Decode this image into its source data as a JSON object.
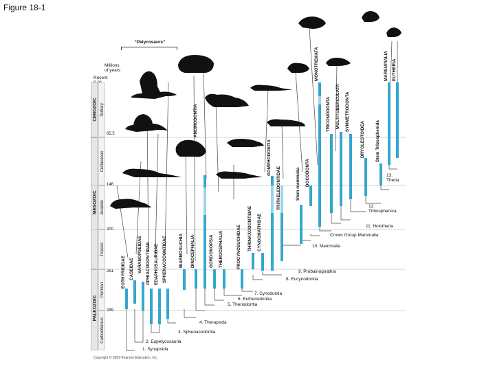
{
  "figure_title": "Figure 18-1",
  "copyright": "Copyright © 2009 Pearson Education, Inc.",
  "pelycosaurs_label": "“Pelycosaurs”",
  "axis": {
    "label_line1": "Millions",
    "label_line2": "of years",
    "recent_line1": "Recent",
    "recent_line2": "0.01",
    "ticks": [
      "65.5",
      "146",
      "200",
      "251",
      "299"
    ]
  },
  "eras": [
    {
      "name": "CENOZOIC"
    },
    {
      "name": "MESOZOIC"
    },
    {
      "name": "PALEOZOIC"
    }
  ],
  "periods": [
    {
      "name": "Tertiary"
    },
    {
      "name": "Cretaceous"
    },
    {
      "name": "Jurassic"
    },
    {
      "name": "Triassic"
    },
    {
      "name": "Permian"
    },
    {
      "name": "Carboniferous"
    }
  ],
  "taxa": [
    "EOTHYRIDIDAE",
    "CASEIDAE",
    "VARANOPSEIDAE",
    "OPHIACODONTIDAE",
    "EDAPHOSAURIDAE",
    "SPHENACODONTIDAE",
    "BIARMOSUCHIA",
    "DINOCEPHALIA",
    "ANOMODONTIA",
    "GORGONOPSIA",
    "THEROCEPHALIA",
    "PROCYNOSUCHIDAE",
    "THRINAXODONTIDAE",
    "CYNOGNATHIDAE",
    "GOMPHODONTIA",
    "TRITHELEDONTIDAE",
    "Stem mammalia",
    "DOCODONTA",
    "MONOTREMATA",
    "TRICONODONTA",
    "MULTITUBERCULATA",
    "SYMMETRODONTA",
    "DRYOLESTOIDEA",
    "Stem Tribosphenida",
    "MARSUPIALIA",
    "EUTHERIA"
  ],
  "nodes": [
    "1. Synapsida",
    "2. Eupelycosauria",
    "3. Sphenacodontia",
    "4. Therapsida",
    "5. Theriodontia",
    "6. Eutheriodontia",
    "7. Cynodontia",
    "8. Eucynodontia",
    "9. Probainognathia",
    "10. Mammalia",
    "Crown Group Mammalia",
    "11. Holotheria",
    "12.",
    "Tribosphenica",
    "13.",
    "Theria"
  ]
}
